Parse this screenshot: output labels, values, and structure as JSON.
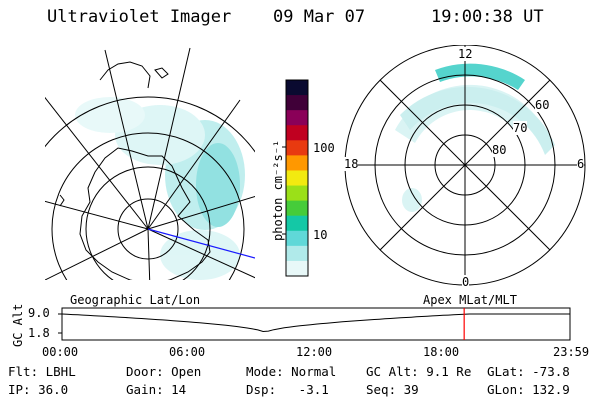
{
  "header": {
    "instrument": "Ultraviolet Imager",
    "date": "09 Mar 07",
    "time": "19:00:38 UT"
  },
  "colorbar": {
    "ticks": [
      "100",
      "10"
    ],
    "unit_label": "photon cm⁻²s⁻¹",
    "colors": [
      "#0a0a30",
      "#400038",
      "#8a0058",
      "#c00020",
      "#e83a10",
      "#ff9800",
      "#f2ea10",
      "#9be018",
      "#46cc3a",
      "#14c8a6",
      "#60d8d8",
      "#b0eaea",
      "#e8f8f8"
    ]
  },
  "polar": {
    "mlt_labels": {
      "top": "12",
      "bottom": "0",
      "left": "18",
      "right": "6"
    },
    "lat_labels": [
      "60",
      "70",
      "80"
    ]
  },
  "timeline": {
    "left_label": "Geographic Lat/Lon",
    "right_label": "Apex MLat/MLT",
    "axis_label": "GC Alt",
    "y_max": "9.0",
    "y_min": "1.8",
    "x_ticks": [
      "00:00",
      "06:00",
      "12:00",
      "18:00",
      "23:59"
    ],
    "marker_color": "#ff0000",
    "marker_time": "19:00"
  },
  "footer": {
    "row1": {
      "filter": "Flt: LBHL",
      "door": "Door: Open",
      "mode": "Mode: Normal",
      "gc_alt": "GC Alt: 9.1 Re",
      "glat": "GLat: -73.8"
    },
    "row2": {
      "ip": "IP: 36.0",
      "gain": "Gain: 14",
      "dsp": "Dsp:   -3.1",
      "seq": "Seq: 39",
      "glon": "GLon: 132.9"
    }
  }
}
